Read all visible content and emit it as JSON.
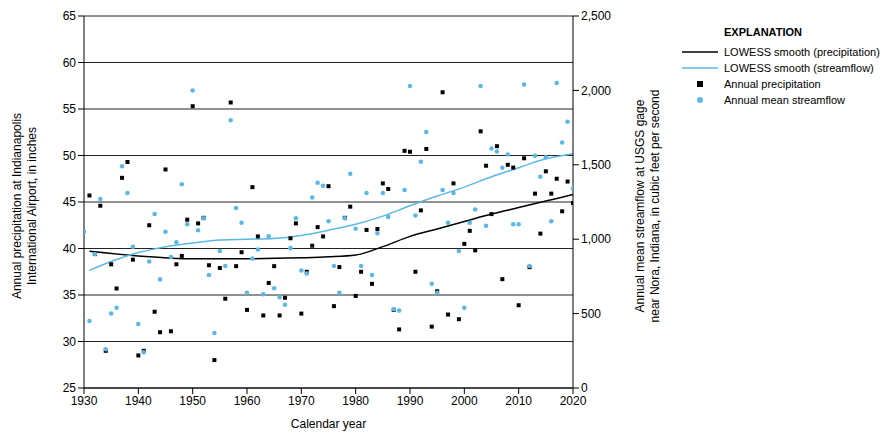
{
  "chart_data": {
    "type": "scatter",
    "xlabel": "Calendar year",
    "ylabel": [
      "Annual precipitation at Indianapolis",
      "International Airport, in inches"
    ],
    "y2label": [
      "Annual mean streamflow at USGS gage",
      "near Nora, Indiana, in cubic feet per second"
    ],
    "legend_title": "EXPLANATION",
    "legend": "right",
    "grid": true,
    "xlim": [
      1930,
      2020
    ],
    "xticks": [
      1930,
      1940,
      1950,
      1960,
      1970,
      1980,
      1990,
      2000,
      2010,
      2020
    ],
    "ylim": [
      25,
      65
    ],
    "yticks": [
      25,
      30,
      35,
      40,
      45,
      50,
      55,
      60,
      65
    ],
    "y2lim": [
      0,
      2500
    ],
    "y2ticks": [
      0,
      500,
      {
        "value": 1000,
        "label": "1,000"
      },
      {
        "value": 1500,
        "label": "1,500"
      },
      {
        "value": 2000,
        "label": "2,000"
      },
      {
        "value": 2500,
        "label": "2,500"
      }
    ],
    "series": [
      {
        "name": "LOWESS smooth (precipitation)",
        "type": "line",
        "color": "#000000",
        "line_style": "solid",
        "x": [
          1931,
          1940,
          1950,
          1960,
          1970,
          1975,
          1980,
          1985,
          1990,
          1995,
          2000,
          2005,
          2010,
          2015,
          2020
        ],
        "values": [
          39.7,
          39.2,
          38.9,
          38.9,
          39.0,
          39.1,
          39.3,
          40.2,
          41.3,
          42.1,
          42.9,
          43.7,
          44.4,
          45.1,
          45.8
        ]
      },
      {
        "name": "LOWESS smooth (streamflow)",
        "type": "line",
        "color": "#5bb8e6",
        "line_style": "solid",
        "axis": "y2",
        "x": [
          1931,
          1935,
          1940,
          1945,
          1950,
          1955,
          1960,
          1965,
          1970,
          1975,
          1980,
          1985,
          1990,
          1995,
          2000,
          2005,
          2010,
          2015,
          2020
        ],
        "values": [
          790,
          850,
          910,
          950,
          975,
          995,
          1000,
          1005,
          1025,
          1060,
          1100,
          1155,
          1225,
          1290,
          1350,
          1420,
          1480,
          1540,
          1575
        ]
      },
      {
        "name": "Annual precipitation",
        "type": "scatter",
        "color": "#000000",
        "marker": "square",
        "x": [
          1931,
          1932,
          1933,
          1934,
          1935,
          1936,
          1937,
          1938,
          1939,
          1940,
          1941,
          1942,
          1943,
          1944,
          1945,
          1946,
          1947,
          1948,
          1949,
          1950,
          1951,
          1952,
          1953,
          1954,
          1955,
          1956,
          1957,
          1958,
          1959,
          1960,
          1961,
          1962,
          1963,
          1964,
          1965,
          1966,
          1967,
          1968,
          1969,
          1970,
          1971,
          1972,
          1973,
          1974,
          1975,
          1976,
          1977,
          1978,
          1979,
          1980,
          1981,
          1982,
          1983,
          1984,
          1985,
          1986,
          1987,
          1988,
          1989,
          1990,
          1991,
          1992,
          1993,
          1994,
          1995,
          1996,
          1997,
          1998,
          1999,
          2000,
          2001,
          2002,
          2003,
          2004,
          2005,
          2006,
          2007,
          2008,
          2009,
          2010,
          2011,
          2012,
          2013,
          2014,
          2015,
          2016,
          2017,
          2018,
          2019,
          2020
        ],
        "values": [
          45.7,
          39.4,
          44.6,
          29.0,
          38.3,
          35.7,
          47.6,
          49.3,
          38.8,
          28.5,
          29.0,
          42.5,
          33.2,
          31.0,
          48.5,
          31.1,
          38.3,
          39.2,
          43.1,
          55.3,
          42.7,
          43.3,
          38.2,
          28.0,
          37.9,
          34.6,
          55.7,
          38.1,
          39.6,
          33.4,
          46.6,
          41.3,
          32.8,
          36.3,
          38.1,
          32.8,
          34.7,
          41.1,
          42.7,
          33.0,
          37.5,
          40.3,
          42.3,
          41.3,
          46.7,
          33.8,
          38.0,
          43.3,
          44.5,
          34.9,
          37.5,
          42.0,
          36.2,
          42.1,
          47.0,
          46.4,
          33.4,
          31.3,
          50.5,
          50.4,
          37.5,
          44.1,
          50.7,
          31.6,
          35.4,
          56.8,
          32.9,
          47.0,
          32.4,
          40.5,
          41.9,
          39.8,
          52.6,
          48.9,
          43.7,
          51.0,
          36.7,
          49.0,
          48.7,
          33.9,
          49.7,
          38.0,
          45.9,
          41.6,
          48.3,
          45.9,
          47.5,
          44.0,
          47.2,
          44.9
        ]
      },
      {
        "name": "Annual mean streamflow",
        "type": "scatter",
        "color": "#5bb8e6",
        "marker": "circle",
        "axis": "y2",
        "x": [
          1930,
          1931,
          1932,
          1933,
          1934,
          1935,
          1936,
          1937,
          1938,
          1939,
          1940,
          1941,
          1942,
          1943,
          1944,
          1945,
          1946,
          1947,
          1948,
          1949,
          1950,
          1951,
          1952,
          1953,
          1954,
          1955,
          1956,
          1957,
          1958,
          1959,
          1960,
          1961,
          1962,
          1963,
          1964,
          1965,
          1966,
          1967,
          1968,
          1969,
          1970,
          1971,
          1972,
          1973,
          1974,
          1975,
          1976,
          1977,
          1978,
          1979,
          1980,
          1981,
          1982,
          1983,
          1984,
          1985,
          1986,
          1987,
          1988,
          1989,
          1990,
          1991,
          1992,
          1993,
          1994,
          1995,
          1996,
          1997,
          1998,
          1999,
          2000,
          2001,
          2002,
          2003,
          2004,
          2005,
          2006,
          2007,
          2008,
          2009,
          2010,
          2011,
          2012,
          2013,
          2014,
          2015,
          2016,
          2017,
          2018,
          2019,
          2020
        ],
        "values": [
          1050,
          450,
          900,
          1270,
          260,
          500,
          540,
          1490,
          1310,
          950,
          430,
          240,
          850,
          1170,
          730,
          1050,
          880,
          980,
          1370,
          1100,
          2000,
          1060,
          1140,
          760,
          370,
          920,
          820,
          1800,
          1210,
          1110,
          640,
          870,
          930,
          630,
          1020,
          670,
          610,
          560,
          940,
          1140,
          790,
          770,
          1280,
          1380,
          1360,
          1120,
          820,
          640,
          1140,
          1440,
          1070,
          820,
          1310,
          760,
          1040,
          1310,
          1150,
          530,
          520,
          1330,
          2030,
          1160,
          1520,
          1720,
          700,
          640,
          1330,
          1110,
          1310,
          920,
          540,
          1110,
          1200,
          2030,
          1090,
          1610,
          1590,
          1480,
          1570,
          1100,
          1100,
          2040,
          820,
          1560,
          1420,
          1550,
          1120,
          2050,
          1650,
          1790,
          1340
        ]
      }
    ]
  }
}
